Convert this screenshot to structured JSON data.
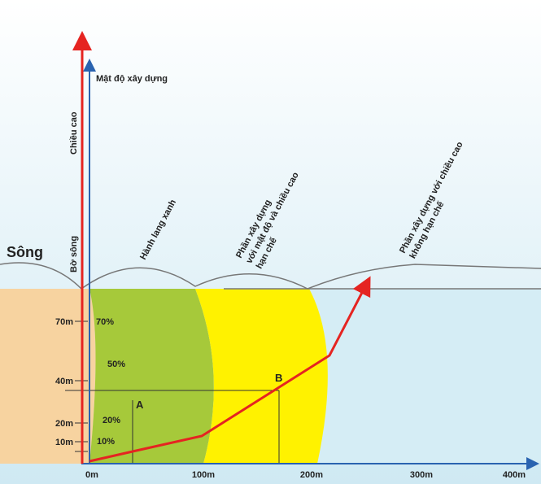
{
  "title": {
    "river": "Sông",
    "height_axis": "Chiều cao",
    "density_axis": "Mật độ xây dựng",
    "riverbank": "Bờ sông"
  },
  "zones": [
    {
      "lines": [
        "Hành lang xanh"
      ]
    },
    {
      "lines": [
        "Phần xây dựng",
        "với mật độ và chiều cao",
        "hạn chế"
      ]
    },
    {
      "lines": [
        "Phần xây dựng với chiều cao",
        "không hạn chế"
      ]
    }
  ],
  "height_ticks": [
    "70m",
    "40m",
    "20m",
    "10m"
  ],
  "distance_ticks": [
    "0m",
    "100m",
    "200m",
    "300m",
    "400m"
  ],
  "density_labels": [
    "70%",
    "50%",
    "20%",
    "10%"
  ],
  "points": [
    "A",
    "B"
  ]
}
